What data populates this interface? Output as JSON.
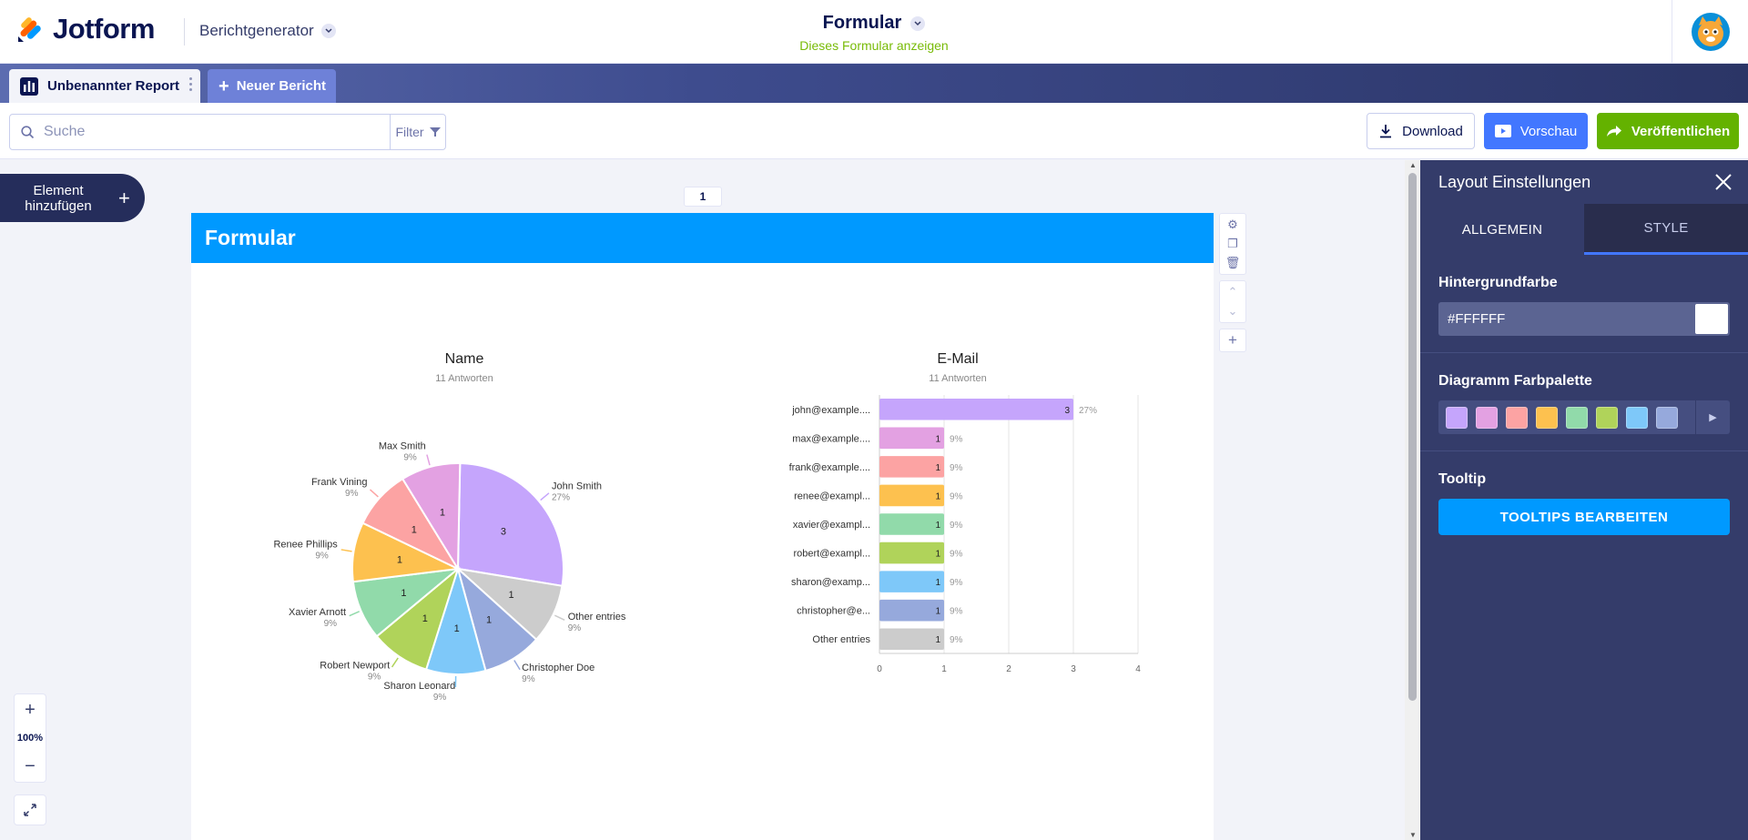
{
  "header": {
    "logo_text": "Jotform",
    "app_switcher": "Berichtgenerator",
    "form_title": "Formular",
    "form_subtitle": "Dieses Formular anzeigen"
  },
  "tabs": {
    "report_tab": "Unbenannter Report",
    "new_report": "Neuer Bericht"
  },
  "toolbar": {
    "search_placeholder": "Suche",
    "filter_label": "Filter",
    "download_label": "Download",
    "preview_label": "Vorschau",
    "publish_label": "Veröffentlichen"
  },
  "canvas": {
    "add_element_label_line1": "Element",
    "add_element_label_line2": "hinzufügen",
    "page_number": "1",
    "report_header_title": "Formular",
    "zoom_level": "100%"
  },
  "chart_data": [
    {
      "type": "pie",
      "title": "Name",
      "subtitle": "11 Antworten",
      "slices": [
        {
          "label": "John Smith",
          "value": 3,
          "percent": "27%",
          "color": "#c5a5fc"
        },
        {
          "label": "Other entries",
          "value": 1,
          "percent": "9%",
          "color": "#cccccc"
        },
        {
          "label": "Christopher Doe",
          "value": 1,
          "percent": "9%",
          "color": "#96a9dc"
        },
        {
          "label": "Sharon Leonard",
          "value": 1,
          "percent": "9%",
          "color": "#7ec8f9"
        },
        {
          "label": "Robert Newport",
          "value": 1,
          "percent": "9%",
          "color": "#b0d35a"
        },
        {
          "label": "Xavier Arnott",
          "value": 1,
          "percent": "9%",
          "color": "#91daaa"
        },
        {
          "label": "Renee Phillips",
          "value": 1,
          "percent": "9%",
          "color": "#fdc14f"
        },
        {
          "label": "Frank Vining",
          "value": 1,
          "percent": "9%",
          "color": "#fca3a3"
        },
        {
          "label": "Max Smith",
          "value": 1,
          "percent": "9%",
          "color": "#e3a1e2"
        }
      ]
    },
    {
      "type": "bar",
      "orientation": "horizontal",
      "title": "E-Mail",
      "subtitle": "11 Antworten",
      "categories": [
        "john@example....",
        "max@example....",
        "frank@example....",
        "renee@exampl...",
        "xavier@exampl...",
        "robert@exampl...",
        "sharon@examp...",
        "christopher@e...",
        "Other entries"
      ],
      "values": [
        3,
        1,
        1,
        1,
        1,
        1,
        1,
        1,
        1
      ],
      "percents": [
        "27%",
        "9%",
        "9%",
        "9%",
        "9%",
        "9%",
        "9%",
        "9%",
        "9%"
      ],
      "colors": [
        "#c5a5fc",
        "#e3a1e2",
        "#fca3a3",
        "#fdc14f",
        "#91daaa",
        "#b0d35a",
        "#7ec8f9",
        "#96a9dc",
        "#cccccc"
      ],
      "xticks": [
        "0",
        "1",
        "2",
        "3",
        "4"
      ],
      "xlim": [
        0,
        4
      ]
    }
  ],
  "panel": {
    "title": "Layout Einstellungen",
    "tab_general": "ALLGEMEIN",
    "tab_style": "STYLE",
    "bg_label": "Hintergrundfarbe",
    "bg_value": "#FFFFFF",
    "palette_label": "Diagramm Farbpalette",
    "palette_colors": [
      "#c5a5fc",
      "#e3a1e2",
      "#fca3a3",
      "#fdc14f",
      "#91daaa",
      "#b0d35a",
      "#7ec8f9",
      "#96a9dc"
    ],
    "tooltip_label": "Tooltip",
    "tooltip_button": "TOOLTIPS BEARBEITEN"
  }
}
